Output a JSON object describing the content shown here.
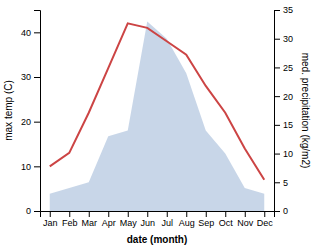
{
  "chart_data": {
    "type": "line",
    "categories": [
      "Jan",
      "Feb",
      "Mar",
      "Apr",
      "May",
      "Jun",
      "Jul",
      "Aug",
      "Sep",
      "Oct",
      "Nov",
      "Dec"
    ],
    "xlabel": "date (month)",
    "ylabel": "max temp (C)",
    "y2label": "med. precipitation (kg/m2)",
    "series": [
      {
        "type": "area",
        "axis": "y2",
        "color": "#b0c4de",
        "values": [
          3,
          4,
          5,
          13,
          14,
          33,
          30,
          24,
          14,
          10,
          4,
          3
        ]
      },
      {
        "type": "line",
        "color": "#cc4444",
        "values": [
          10,
          13,
          22,
          32,
          42,
          41,
          38,
          35,
          28,
          22,
          14,
          7
        ]
      }
    ],
    "ylim": [
      0,
      45
    ],
    "yticks": [
      0,
      10,
      20,
      30,
      40
    ],
    "y2lim": [
      0,
      35
    ],
    "y2ticks": [
      0,
      5,
      10,
      15,
      20,
      25,
      30,
      35
    ],
    "grid": false
  }
}
